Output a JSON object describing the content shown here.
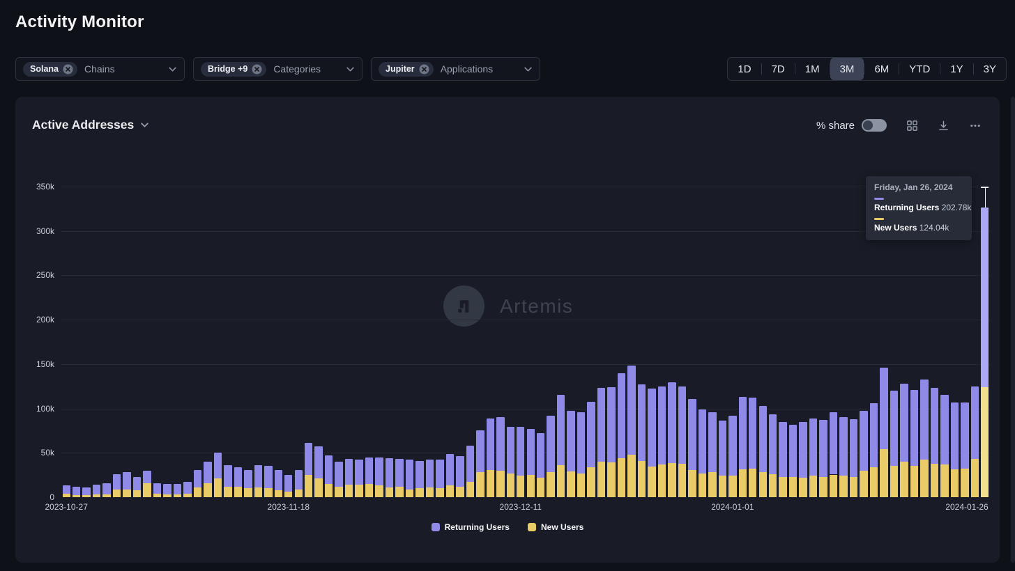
{
  "page": {
    "title": "Activity Monitor"
  },
  "filters": [
    {
      "chip": "Solana",
      "label": "Chains"
    },
    {
      "chip": "Bridge +9",
      "label": "Categories"
    },
    {
      "chip": "Jupiter",
      "label": "Applications"
    }
  ],
  "time_range": {
    "options": [
      "1D",
      "7D",
      "1M",
      "3M",
      "6M",
      "YTD",
      "1Y",
      "3Y"
    ],
    "selected": "3M"
  },
  "panel": {
    "title": "Active Addresses",
    "share_label": "% share",
    "share_toggle_on": false,
    "watermark": "Artemis"
  },
  "tooltip": {
    "date": "Friday, Jan 26, 2024",
    "rows": [
      {
        "label": "Returning Users",
        "value": "202.78k",
        "color": "#8f8ae7"
      },
      {
        "label": "New Users",
        "value": "124.04k",
        "color": "#e9cc67"
      }
    ]
  },
  "chart_data": {
    "type": "bar",
    "stacked": true,
    "title": "Active Addresses",
    "xlabel": "",
    "ylabel": "",
    "unit": "thousands of active addresses per day",
    "ylim_k": [
      0,
      350
    ],
    "ytick_values_k": [
      0,
      50,
      100,
      150,
      200,
      250,
      300,
      350
    ],
    "ytick_labels": [
      "0",
      "50k",
      "100k",
      "150k",
      "200k",
      "250k",
      "300k",
      "350k"
    ],
    "xticks": [
      {
        "index": 0,
        "label": "2023-10-27"
      },
      {
        "index": 22,
        "label": "2023-11-18"
      },
      {
        "index": 45,
        "label": "2023-12-11"
      },
      {
        "index": 66,
        "label": "2024-01-01"
      },
      {
        "index": 91,
        "label": "2024-01-26"
      }
    ],
    "legend_position": "bottom",
    "grid": true,
    "highlighted_index": 91,
    "highlight_colors": [
      "#aca8f3",
      "#f2df8e"
    ],
    "dates": [
      "2023-10-27",
      "2023-10-28",
      "2023-10-29",
      "2023-10-30",
      "2023-10-31",
      "2023-11-01",
      "2023-11-02",
      "2023-11-03",
      "2023-11-04",
      "2023-11-05",
      "2023-11-06",
      "2023-11-07",
      "2023-11-08",
      "2023-11-09",
      "2023-11-10",
      "2023-11-11",
      "2023-11-12",
      "2023-11-13",
      "2023-11-14",
      "2023-11-15",
      "2023-11-16",
      "2023-11-17",
      "2023-11-18",
      "2023-11-19",
      "2023-11-20",
      "2023-11-21",
      "2023-11-22",
      "2023-11-23",
      "2023-11-24",
      "2023-11-25",
      "2023-11-26",
      "2023-11-27",
      "2023-11-28",
      "2023-11-29",
      "2023-11-30",
      "2023-12-01",
      "2023-12-02",
      "2023-12-03",
      "2023-12-04",
      "2023-12-05",
      "2023-12-06",
      "2023-12-07",
      "2023-12-08",
      "2023-12-09",
      "2023-12-10",
      "2023-12-11",
      "2023-12-12",
      "2023-12-13",
      "2023-12-14",
      "2023-12-15",
      "2023-12-16",
      "2023-12-17",
      "2023-12-18",
      "2023-12-19",
      "2023-12-20",
      "2023-12-21",
      "2023-12-22",
      "2023-12-23",
      "2023-12-24",
      "2023-12-25",
      "2023-12-26",
      "2023-12-27",
      "2023-12-28",
      "2023-12-29",
      "2023-12-30",
      "2023-12-31",
      "2024-01-01",
      "2024-01-02",
      "2024-01-03",
      "2024-01-04",
      "2024-01-05",
      "2024-01-06",
      "2024-01-07",
      "2024-01-08",
      "2024-01-09",
      "2024-01-10",
      "2024-01-11",
      "2024-01-12",
      "2024-01-13",
      "2024-01-14",
      "2024-01-15",
      "2024-01-16",
      "2024-01-17",
      "2024-01-18",
      "2024-01-19",
      "2024-01-20",
      "2024-01-21",
      "2024-01-22",
      "2024-01-23",
      "2024-01-24",
      "2024-01-25",
      "2024-01-26"
    ],
    "series": [
      {
        "name": "Returning Users",
        "color": "#8f8ae7",
        "values_k": [
          9,
          9.5,
          9,
          11,
          13,
          17,
          19.5,
          15,
          14,
          12,
          12,
          11.5,
          13,
          20,
          24,
          29,
          24,
          22,
          21,
          25,
          25,
          23,
          19,
          22,
          36,
          36,
          32,
          28.5,
          29.5,
          28,
          30,
          32,
          33,
          32,
          33,
          31,
          31,
          31.5,
          36,
          34,
          41,
          47,
          58.5,
          60,
          52.5,
          54.5,
          52,
          50,
          64,
          79,
          68,
          69,
          73.5,
          83,
          85,
          96,
          101,
          86.5,
          88,
          88.5,
          91,
          87.5,
          80.5,
          72,
          67.5,
          62.5,
          67.5,
          81.5,
          80.5,
          74.5,
          67.5,
          62.5,
          59.5,
          62.5,
          65,
          64,
          70,
          66.5,
          65,
          67,
          72,
          92,
          84.5,
          88,
          86,
          91,
          86,
          79,
          75.5,
          75,
          81.5,
          202.78
        ]
      },
      {
        "name": "New Users",
        "color": "#e9cc67",
        "values_k": [
          4,
          2.5,
          2,
          3,
          3,
          9,
          8.5,
          8,
          16,
          4,
          3,
          3.5,
          4,
          11,
          16,
          21,
          12,
          12,
          10,
          11,
          10,
          8,
          6,
          9,
          25,
          21,
          15,
          11.5,
          14,
          14,
          15,
          13,
          11,
          11.5,
          9,
          10,
          11,
          10.5,
          13,
          12,
          17,
          28,
          30.5,
          30,
          26.5,
          24.5,
          25,
          22,
          28,
          36,
          29,
          27,
          34,
          40,
          39,
          44,
          47.5,
          41,
          34.5,
          36.5,
          38.5,
          37.5,
          30.5,
          27,
          28,
          24,
          24.5,
          31.5,
          32,
          28,
          26,
          22.5,
          22.5,
          22,
          24,
          23,
          25.5,
          24,
          23,
          30,
          34,
          54,
          35.5,
          40,
          35,
          42,
          37.5,
          36.5,
          31.5,
          32,
          43.5,
          124.04
        ]
      }
    ]
  }
}
